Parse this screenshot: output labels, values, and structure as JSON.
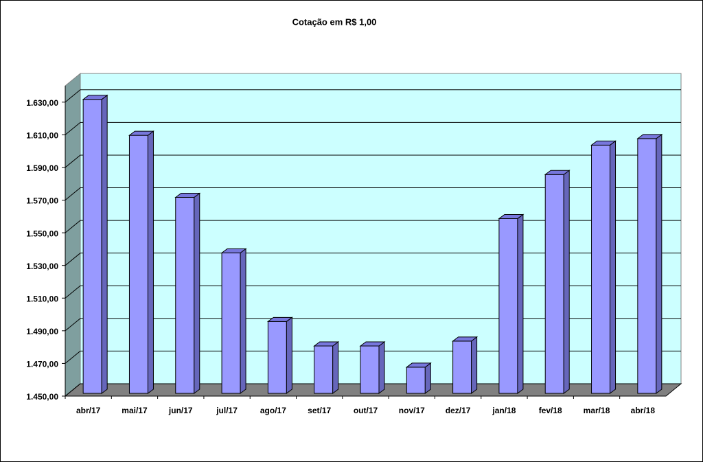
{
  "chart_data": {
    "type": "bar",
    "title": "Cotação em R$ 1,00",
    "categories": [
      "abr/17",
      "mai/17",
      "jun/17",
      "jul/17",
      "ago/17",
      "set/17",
      "out/17",
      "nov/17",
      "dez/17",
      "jan/18",
      "fev/18",
      "mar/18",
      "abr/18"
    ],
    "values": [
      1630,
      1608,
      1570,
      1536,
      1494,
      1479,
      1479,
      1466,
      1482,
      1557,
      1584,
      1602,
      1606
    ],
    "color": "#9999ff",
    "ylim": [
      1450,
      1640
    ],
    "yticks": [
      {
        "value": 1450,
        "label": "1.450,00"
      },
      {
        "value": 1470,
        "label": "1.470,00"
      },
      {
        "value": 1490,
        "label": "1.490,00"
      },
      {
        "value": 1510,
        "label": "1.510,00"
      },
      {
        "value": 1530,
        "label": "1.530,00"
      },
      {
        "value": 1550,
        "label": "1.550,00"
      },
      {
        "value": 1570,
        "label": "1.570,00"
      },
      {
        "value": 1590,
        "label": "1.590,00"
      },
      {
        "value": 1610,
        "label": "1.610,00"
      },
      {
        "value": 1630,
        "label": "1.630,00"
      }
    ],
    "grid": true
  }
}
